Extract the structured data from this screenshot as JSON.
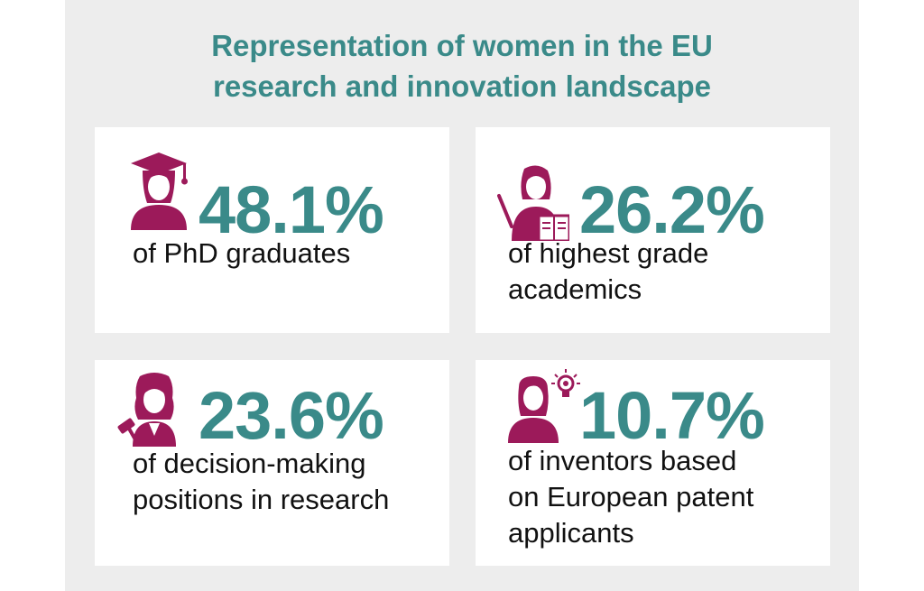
{
  "title": {
    "line1": "Representation of women in the EU",
    "line2": "research and innovation landscape"
  },
  "colors": {
    "accent": "#3a8a89",
    "icon": "#9c1a5a",
    "panel": "#ededed"
  },
  "stats": [
    {
      "value": "48.1%",
      "lines": [
        "of PhD graduates"
      ],
      "icon": "graduate-icon"
    },
    {
      "value": "26.2%",
      "lines": [
        "of highest grade",
        "academics"
      ],
      "icon": "academic-icon"
    },
    {
      "value": "23.6%",
      "lines": [
        "of decision-making",
        "positions in research"
      ],
      "icon": "judge-icon"
    },
    {
      "value": "10.7%",
      "lines": [
        "of inventors based",
        "on European patent",
        "applicants"
      ],
      "icon": "inventor-icon"
    }
  ]
}
